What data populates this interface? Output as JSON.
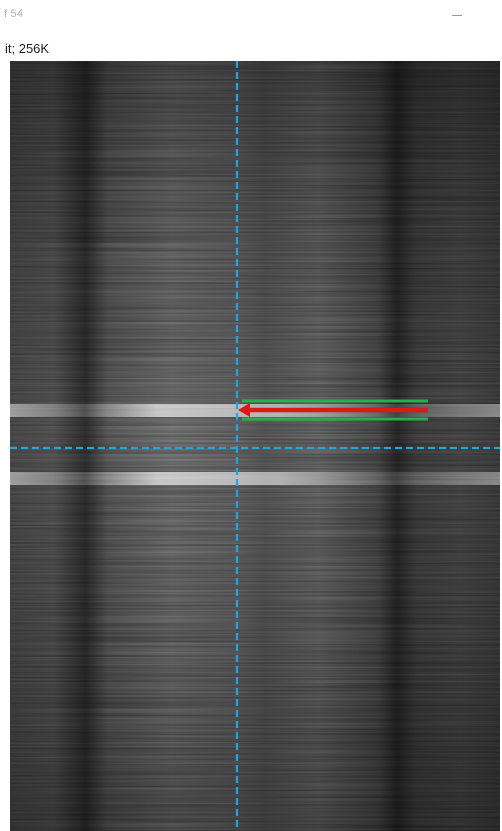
{
  "window": {
    "frame_counter": "f 54",
    "minimize_glyph": "—"
  },
  "image_info": {
    "summary": "it; 256K"
  },
  "viewer": {
    "crosshair_color": "#27a3dc",
    "selection_arrow_color": "#d91a1a",
    "selection_bracket_color": "#25b04b",
    "icons": [
      "crosshair-vertical-line",
      "crosshair-horizontal-line",
      "roi-arrow-icon"
    ]
  }
}
